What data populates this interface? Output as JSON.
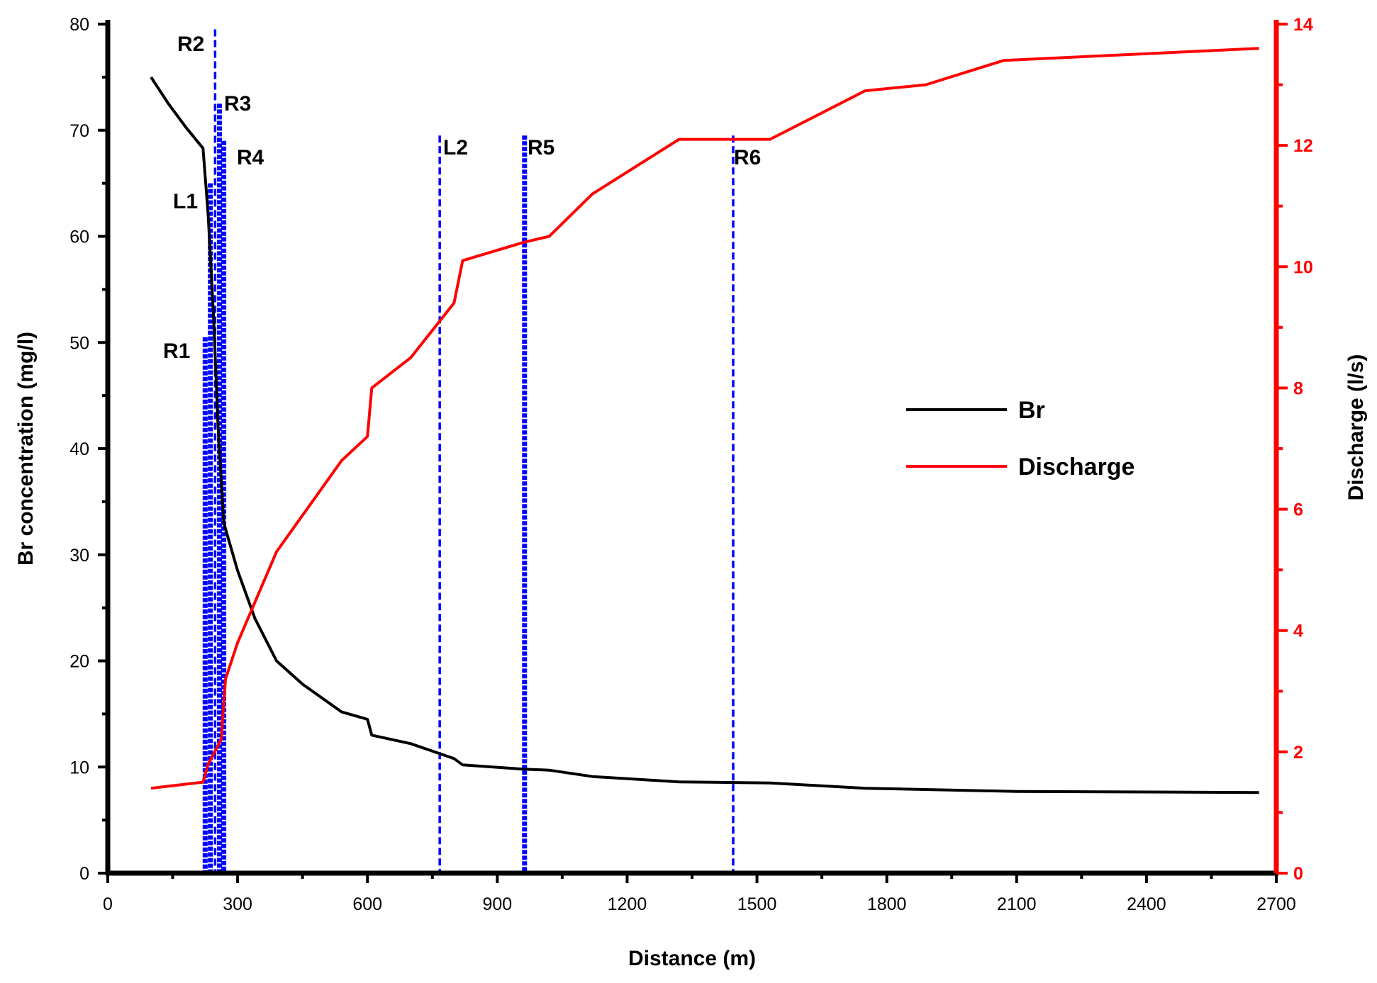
{
  "chart_data": {
    "type": "line",
    "xlabel": "Distance (m)",
    "ylabel": "Br concentration (mg/l)",
    "y2label": "Discharge (l/s)",
    "xlim": [
      0,
      2700
    ],
    "ylim": [
      0,
      80
    ],
    "y2lim": [
      0,
      14
    ],
    "x_ticks": [
      0,
      300,
      600,
      900,
      1200,
      1500,
      1800,
      2100,
      2400,
      2700
    ],
    "y_ticks": [
      0,
      10,
      20,
      30,
      40,
      50,
      60,
      70,
      80
    ],
    "y2_ticks": [
      0,
      2,
      4,
      6,
      8,
      10,
      12,
      14
    ],
    "legend_position": "center-right",
    "colors": {
      "br": "#000000",
      "discharge": "#ff0000",
      "markers": "#0000ff",
      "right_axis": "#ff0000"
    },
    "series": [
      {
        "name": "Br",
        "axis": "left",
        "color": "#000000",
        "x": [
          100,
          140,
          180,
          220,
          232,
          245,
          255,
          268,
          300,
          340,
          390,
          450,
          540,
          600,
          610,
          700,
          800,
          820,
          960,
          1020,
          1120,
          1320,
          1530,
          1750,
          2100,
          2660
        ],
        "y": [
          75,
          72.5,
          70.3,
          68.3,
          62,
          52,
          42,
          33,
          28.5,
          24,
          20,
          17.8,
          15.2,
          14.5,
          13,
          12.2,
          10.8,
          10.2,
          9.8,
          9.7,
          9.1,
          8.6,
          8.5,
          8,
          7.7,
          7.6
        ]
      },
      {
        "name": "Discharge",
        "axis": "right",
        "color": "#ff0000",
        "x": [
          100,
          220,
          232,
          262,
          272,
          300,
          390,
          540,
          600,
          610,
          700,
          800,
          820,
          960,
          1020,
          1120,
          1320,
          1530,
          1750,
          1890,
          2070,
          2660
        ],
        "y": [
          1.4,
          1.5,
          1.8,
          2.2,
          3.2,
          3.8,
          5.3,
          6.8,
          7.2,
          8,
          8.5,
          9.4,
          10.1,
          10.4,
          10.5,
          11.2,
          12.1,
          12.1,
          12.9,
          13,
          13.4,
          13.6
        ]
      }
    ],
    "markers": [
      {
        "label": "R1",
        "x": 225,
        "y_top": 50.5,
        "style": "dense"
      },
      {
        "label": "L1",
        "x": 237,
        "y_top": 65,
        "style": "dense"
      },
      {
        "label": "R2",
        "x": 248,
        "y_top": 79.5,
        "style": "dashed"
      },
      {
        "label": "R3",
        "x": 258,
        "y_top": 72.5,
        "style": "dense"
      },
      {
        "label": "R4",
        "x": 268,
        "y_top": 69,
        "style": "dense"
      },
      {
        "label": "L2",
        "x": 767,
        "y_top": 69.5,
        "style": "dashed"
      },
      {
        "label": "R5",
        "x": 963,
        "y_top": 69.5,
        "style": "dense"
      },
      {
        "label": "R6",
        "x": 1445,
        "y_top": 69.5,
        "style": "dashed"
      }
    ]
  }
}
